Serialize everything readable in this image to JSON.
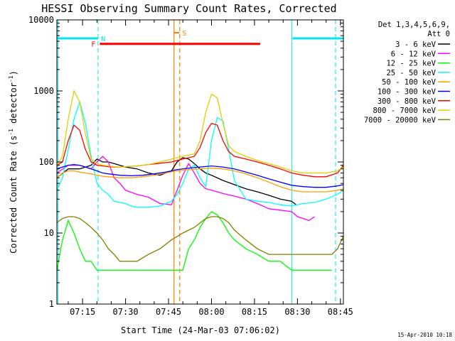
{
  "chart_data": {
    "type": "line",
    "title": "HESSI Observing Summary Count Rates, Corrected",
    "xlabel": "Start Time (24-Mar-03 07:06:02)",
    "ylabel_main": "Corrected Count Rate (s",
    "ylabel_sup1": "-1",
    "ylabel_mid": " detector",
    "ylabel_sup2": "-1",
    "ylabel_end": ")",
    "x_unit": "minutes after 07:00 UT",
    "xlim": [
      6.03,
      106.03
    ],
    "ylim": [
      1,
      10000
    ],
    "yscale": "log",
    "x_ticks": [
      {
        "x": 15,
        "label": "07:15"
      },
      {
        "x": 30,
        "label": "07:30"
      },
      {
        "x": 45,
        "label": "07:45"
      },
      {
        "x": 60,
        "label": "08:00"
      },
      {
        "x": 75,
        "label": "08:15"
      },
      {
        "x": 90,
        "label": "08:30"
      },
      {
        "x": 105,
        "label": "08:45"
      }
    ],
    "y_ticks": [
      {
        "y": 1,
        "label": "1"
      },
      {
        "y": 10,
        "label": "10"
      },
      {
        "y": 100,
        "label": "100"
      },
      {
        "y": 1000,
        "label": "1000"
      },
      {
        "y": 10000,
        "label": "10000"
      }
    ],
    "legend": {
      "header1": "Det 1,3,4,5,6,9,",
      "header2": "Att 0",
      "position": "right"
    },
    "series": [
      {
        "name": "3 - 6 keV",
        "color": "#000000",
        "x": [
          6,
          10,
          14,
          18,
          20,
          22,
          24,
          26,
          28,
          30,
          34,
          38,
          42,
          46,
          48,
          50,
          52,
          54,
          56,
          58,
          60,
          64,
          68,
          72,
          76,
          80,
          84,
          88,
          89.5
        ],
        "y": [
          60,
          80,
          80,
          90,
          110,
          100,
          100,
          95,
          90,
          85,
          80,
          70,
          65,
          75,
          100,
          115,
          110,
          95,
          80,
          70,
          65,
          55,
          48,
          42,
          38,
          34,
          30,
          28,
          25
        ]
      },
      {
        "name": "6 - 12 keV",
        "color": "#ff00ff",
        "x": [
          6,
          10,
          14,
          18,
          20,
          22,
          24,
          26,
          28,
          30,
          34,
          38,
          42,
          46,
          48,
          50,
          52,
          54,
          56,
          58,
          60,
          62,
          64,
          68,
          72,
          76,
          80,
          84,
          88,
          90,
          92,
          94,
          96
        ],
        "y": [
          70,
          90,
          90,
          80,
          100,
          120,
          100,
          60,
          50,
          40,
          35,
          32,
          26,
          25,
          40,
          65,
          95,
          70,
          50,
          42,
          40,
          38,
          36,
          33,
          30,
          26,
          22,
          21,
          20,
          17,
          16,
          15,
          17
        ]
      },
      {
        "name": "12 - 25 keV",
        "color": "#00ff00",
        "x": [
          6,
          8,
          10,
          12,
          14,
          16,
          18,
          20,
          22,
          24,
          26,
          28,
          30,
          32,
          34,
          38,
          42,
          46,
          48,
          50,
          52,
          54,
          56,
          58,
          60,
          62,
          64,
          66,
          68,
          72,
          76,
          80,
          84,
          88,
          92,
          96,
          100,
          102
        ],
        "y": [
          3,
          8,
          15,
          10,
          6,
          4,
          4,
          3,
          3,
          3,
          3,
          3,
          3,
          3,
          3,
          3,
          3,
          3,
          3,
          3,
          6,
          8,
          12,
          16,
          20,
          18,
          14,
          10,
          8,
          6,
          5,
          4,
          4,
          3,
          3,
          3,
          3,
          3
        ]
      },
      {
        "name": "25 - 50 keV",
        "color": "#00ffff",
        "x": [
          6,
          8,
          10,
          12,
          14,
          16,
          18,
          20,
          22,
          24,
          26,
          28,
          30,
          32,
          34,
          38,
          42,
          46,
          48,
          50,
          52,
          54,
          56,
          58,
          60,
          62,
          64,
          66,
          68,
          72,
          76,
          80,
          84,
          88,
          92,
          96,
          100,
          104,
          106
        ],
        "y": [
          40,
          60,
          150,
          400,
          700,
          350,
          120,
          50,
          40,
          35,
          28,
          27,
          26,
          24,
          23,
          23,
          24,
          28,
          35,
          50,
          80,
          90,
          60,
          45,
          200,
          420,
          380,
          150,
          55,
          30,
          28,
          27,
          25,
          24,
          26,
          27,
          30,
          35,
          40
        ]
      },
      {
        "name": "50 - 100 keV",
        "color": "#ffa000",
        "x": [
          6,
          8,
          10,
          12,
          14,
          16,
          18,
          20,
          22,
          24,
          28,
          32,
          36,
          40,
          44,
          48,
          52,
          56,
          60,
          64,
          68,
          72,
          76,
          80,
          84,
          88,
          92,
          96,
          100,
          104,
          106
        ],
        "y": [
          60,
          70,
          75,
          75,
          72,
          70,
          68,
          65,
          63,
          62,
          60,
          60,
          62,
          65,
          70,
          75,
          78,
          80,
          82,
          80,
          75,
          68,
          60,
          52,
          45,
          40,
          38,
          38,
          38,
          40,
          42
        ]
      },
      {
        "name": "100 - 300 keV",
        "color": "#0000ff",
        "x": [
          6,
          8,
          10,
          12,
          14,
          16,
          18,
          20,
          22,
          24,
          28,
          32,
          36,
          40,
          44,
          48,
          52,
          56,
          60,
          64,
          68,
          72,
          76,
          80,
          84,
          88,
          92,
          96,
          100,
          104,
          106
        ],
        "y": [
          80,
          85,
          90,
          92,
          90,
          85,
          80,
          75,
          70,
          68,
          65,
          64,
          65,
          68,
          72,
          78,
          82,
          85,
          88,
          85,
          80,
          72,
          65,
          58,
          52,
          47,
          45,
          44,
          44,
          46,
          48
        ]
      },
      {
        "name": "300 - 800 keV",
        "color": "#ff0000",
        "x": [
          6,
          8,
          10,
          12,
          14,
          16,
          18,
          20,
          22,
          24,
          26,
          28,
          30,
          34,
          38,
          42,
          46,
          50,
          54,
          56,
          58,
          60,
          62,
          64,
          66,
          68,
          72,
          76,
          80,
          84,
          88,
          92,
          96,
          100,
          104,
          106
        ],
        "y": [
          90,
          100,
          200,
          330,
          280,
          150,
          100,
          90,
          88,
          86,
          85,
          85,
          86,
          88,
          92,
          96,
          100,
          110,
          120,
          160,
          260,
          350,
          330,
          200,
          140,
          120,
          110,
          100,
          90,
          80,
          70,
          65,
          62,
          62,
          70,
          90
        ]
      },
      {
        "name": "800 - 7000 keV",
        "color": "#e0d000",
        "x": [
          6,
          8,
          10,
          12,
          14,
          16,
          18,
          20,
          22,
          24,
          26,
          28,
          30,
          34,
          38,
          42,
          46,
          50,
          54,
          56,
          58,
          60,
          62,
          64,
          66,
          68,
          72,
          76,
          80,
          84,
          88,
          92,
          96,
          100,
          104,
          106
        ],
        "y": [
          90,
          120,
          400,
          1000,
          700,
          250,
          110,
          95,
          90,
          88,
          86,
          85,
          86,
          88,
          92,
          100,
          110,
          120,
          130,
          200,
          500,
          900,
          800,
          350,
          170,
          140,
          120,
          105,
          95,
          85,
          75,
          70,
          70,
          70,
          75,
          85
        ]
      },
      {
        "name": "7000 - 20000 keV",
        "color": "#808000",
        "x": [
          6,
          8,
          10,
          12,
          14,
          16,
          18,
          20,
          22,
          24,
          26,
          28,
          30,
          34,
          38,
          42,
          46,
          50,
          54,
          58,
          60,
          62,
          64,
          66,
          68,
          72,
          76,
          80,
          84,
          88,
          92,
          96,
          100,
          102,
          104,
          106
        ],
        "y": [
          14,
          16,
          17,
          17,
          16,
          14,
          12,
          10,
          8,
          6,
          5,
          4,
          4,
          4,
          5,
          6,
          8,
          10,
          12,
          16,
          17,
          17,
          16,
          14,
          11,
          8,
          6,
          5,
          5,
          5,
          5,
          5,
          5,
          5,
          6,
          9
        ]
      }
    ],
    "annotations": {
      "flag_N": {
        "label": "N",
        "color": "#00e5ee",
        "y": 5500,
        "segments": [
          [
            6.03,
            20.5
          ],
          [
            88.3,
            106.03
          ]
        ]
      },
      "flag_F": {
        "label": "F",
        "color": "#ff0000",
        "y": 4600,
        "segments": [
          [
            21,
            77
          ]
        ]
      },
      "flag_S": {
        "label": "S",
        "color": "#ff8000",
        "y": 6600,
        "segments": [
          [
            46.8,
            48.8
          ]
        ]
      },
      "v_solid_orange": {
        "x": 46.9,
        "color": "#ff8000"
      },
      "v_dashed_orange": {
        "x": 48.9,
        "color": "#ff8000"
      },
      "v_solid_cyan": [
        6.4,
        88.0
      ],
      "v_dashed_cyan": [
        20.4,
        103.3
      ]
    }
  },
  "timestamp": "15-Apr-2010 10:18"
}
